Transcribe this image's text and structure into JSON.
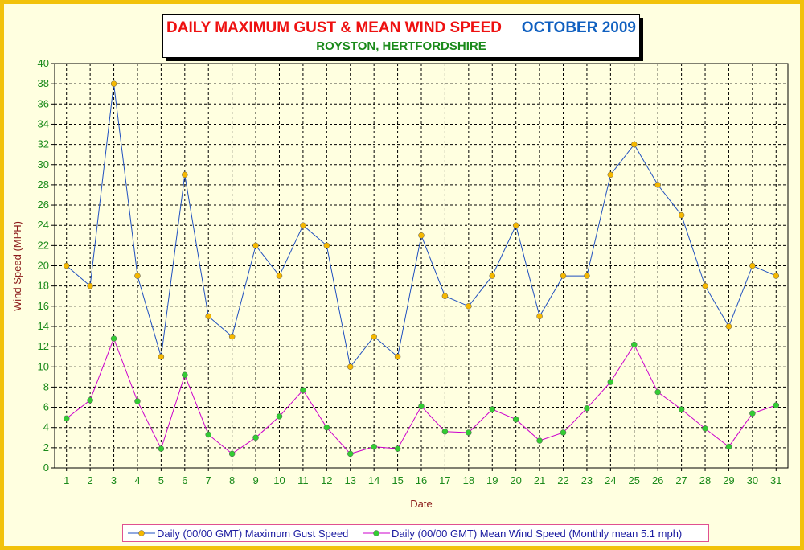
{
  "title": {
    "main": "DAILY MAXIMUM GUST & MEAN WIND SPEED",
    "month": "OCTOBER 2009",
    "subtitle": "ROYSTON, HERTFORDSHIRE"
  },
  "colors": {
    "border": "#f2c20a",
    "plot_background": "#ffffe0",
    "gust_line": "#2050c0",
    "gust_marker": "#f5b800",
    "mean_line": "#cc00cc",
    "mean_marker": "#33cc33",
    "tick_text": "#1a8a1a",
    "axis_title": "#8b1a1a"
  },
  "chart_data": {
    "type": "line",
    "xlabel": "Date",
    "ylabel": "Wind Speed (MPH)",
    "ylim": [
      0,
      40
    ],
    "y_ticks": [
      0,
      2,
      4,
      6,
      8,
      10,
      12,
      14,
      16,
      18,
      20,
      22,
      24,
      26,
      28,
      30,
      32,
      34,
      36,
      38,
      40
    ],
    "grid": true,
    "legend_position": "bottom",
    "x": [
      1,
      2,
      3,
      4,
      5,
      6,
      7,
      8,
      9,
      10,
      11,
      12,
      13,
      14,
      15,
      16,
      17,
      18,
      19,
      20,
      21,
      22,
      23,
      24,
      25,
      26,
      27,
      28,
      29,
      30,
      31
    ],
    "series": [
      {
        "name": "Daily (00/00 GMT) Maximum Gust Speed",
        "values": [
          20,
          18,
          38,
          19,
          11,
          29,
          15,
          13,
          22,
          19,
          24,
          22,
          10,
          13,
          11,
          23,
          17,
          16,
          19,
          24,
          15,
          19,
          19,
          29,
          32,
          28,
          25,
          18,
          14,
          20,
          19
        ]
      },
      {
        "name": "Daily (00/00 GMT) Mean Wind Speed (Monthly mean 5.1 mph)",
        "values": [
          4.9,
          6.7,
          12.8,
          6.6,
          1.9,
          9.2,
          3.3,
          1.4,
          3.0,
          5.1,
          7.7,
          4.0,
          1.4,
          2.1,
          1.9,
          6.1,
          3.6,
          3.5,
          5.8,
          4.8,
          2.7,
          3.5,
          5.9,
          8.5,
          12.2,
          7.5,
          5.8,
          3.9,
          2.1,
          5.4,
          6.2
        ]
      }
    ]
  }
}
